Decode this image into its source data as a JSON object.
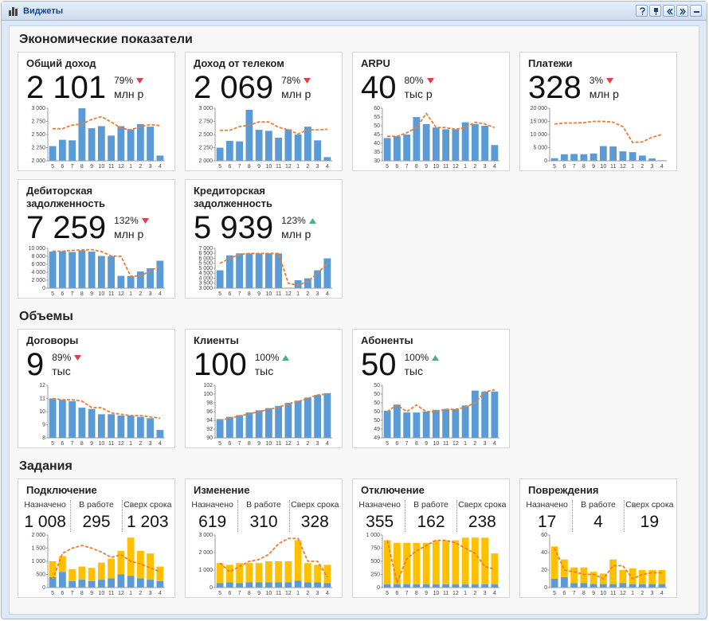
{
  "header": {
    "title": "Виджеты"
  },
  "colors": {
    "bar": "#5b9bd5",
    "upper": "#ffc000",
    "line": "#ed7d31",
    "up": "#4caf7a",
    "down": "#e0404a"
  },
  "months": [
    "5",
    "6",
    "7",
    "8",
    "9",
    "10",
    "11",
    "12",
    "1",
    "2",
    "3",
    "4"
  ],
  "sections": [
    {
      "title": "Экономические показатели",
      "widgets": [
        {
          "title": "Общий доход",
          "value": "2 101",
          "change": "79%",
          "trend": "down",
          "unit": "млн р",
          "chart": {
            "ylim": [
              2000,
              3000
            ],
            "yticks": [
              {
                "value": 2000,
                "label": "2 000"
              },
              {
                "value": 2250,
                "label": "2 250"
              },
              {
                "value": 2500,
                "label": "2 500"
              },
              {
                "value": 2750,
                "label": "2 750"
              },
              {
                "value": 3000,
                "label": "3 000"
              }
            ],
            "bars": [
              2280,
              2400,
              2390,
              3000,
              2620,
              2660,
              2480,
              2660,
              2600,
              2700,
              2650,
              2100
            ],
            "line": [
              2610,
              2610,
              2680,
              2700,
              2790,
              2840,
              2740,
              2620,
              2590,
              2650,
              2690,
              2670
            ]
          }
        },
        {
          "title": "Доход от телеком",
          "value": "2 069",
          "change": "78%",
          "trend": "down",
          "unit": "млн р",
          "chart": {
            "ylim": [
              2000,
              3000
            ],
            "yticks": [
              {
                "value": 2000,
                "label": "2 000"
              },
              {
                "value": 2250,
                "label": "2 250"
              },
              {
                "value": 2500,
                "label": "2 500"
              },
              {
                "value": 2750,
                "label": "2 750"
              },
              {
                "value": 3000,
                "label": "3 000"
              }
            ],
            "bars": [
              2250,
              2380,
              2370,
              2970,
              2590,
              2570,
              2440,
              2600,
              2500,
              2650,
              2390,
              2070
            ],
            "line": [
              2580,
              2580,
              2650,
              2680,
              2740,
              2740,
              2640,
              2590,
              2510,
              2590,
              2590,
              2600
            ]
          }
        },
        {
          "title": "ARPU",
          "value": "40",
          "change": "80%",
          "trend": "down",
          "unit": "тыс р",
          "chart": {
            "ylim": [
              30,
              60
            ],
            "yticks": [
              30,
              35,
              40,
              45,
              50,
              55,
              60
            ],
            "bars": [
              43,
              44,
              45,
              55,
              51,
              49,
              48,
              48,
              52,
              51,
              50,
              39
            ],
            "line": [
              44,
              44,
              46,
              49,
              57,
              49,
              49,
              48,
              49,
              52,
              51,
              49
            ]
          }
        },
        {
          "title": "Платежи",
          "value": "328",
          "change": "3%",
          "trend": "down",
          "unit": "млн р",
          "chart": {
            "ylim": [
              0,
              20000
            ],
            "yticks": [
              0,
              {
                "value": 5000,
                "label": "5 000"
              },
              {
                "value": 10000,
                "label": "10 000"
              },
              {
                "value": 15000,
                "label": "15 000"
              },
              {
                "value": 20000,
                "label": "20 000"
              }
            ],
            "bars": [
              1000,
              2500,
              2600,
              2500,
              2800,
              5600,
              5500,
              3600,
              3300,
              2000,
              900,
              200
            ],
            "line": [
              14000,
              14400,
              14400,
              14500,
              15000,
              15000,
              14700,
              13000,
              7000,
              7200,
              9000,
              10000
            ]
          }
        },
        {
          "title": "Дебиторская задолженность",
          "value": "7 259",
          "change": "132%",
          "trend": "down",
          "unit": "млн р",
          "chart": {
            "ylim": [
              0,
              10000
            ],
            "yticks": [
              0,
              {
                "value": 2000,
                "label": "2 000"
              },
              {
                "value": 4000,
                "label": "4 000"
              },
              {
                "value": 6000,
                "label": "6 000"
              },
              {
                "value": 8000,
                "label": "8 000"
              },
              {
                "value": 10000,
                "label": "10 000"
              }
            ],
            "bars": [
              9200,
              9300,
              9100,
              9500,
              9200,
              8100,
              8000,
              3100,
              3000,
              4200,
              5000,
              6900
            ],
            "line": [
              9300,
              9300,
              9500,
              9600,
              9700,
              9200,
              8100,
              8000,
              3000,
              3100,
              4300,
              5600
            ]
          }
        },
        {
          "title": "Кредиторская задолженность",
          "value": "5 939",
          "change": "123%",
          "trend": "up",
          "unit": "млн р",
          "chart": {
            "ylim": [
              3000,
              7000
            ],
            "yticks": [
              {
                "value": 3000,
                "label": "3 000"
              },
              {
                "value": 3500,
                "label": "3 500"
              },
              {
                "value": 4000,
                "label": "4 000"
              },
              {
                "value": 4500,
                "label": "4 500"
              },
              {
                "value": 5000,
                "label": "5 000"
              },
              {
                "value": 5500,
                "label": "5 500"
              },
              {
                "value": 6000,
                "label": "6 000"
              },
              {
                "value": 6500,
                "label": "6 500"
              },
              {
                "value": 7000,
                "label": "7 000"
              }
            ],
            "bars": [
              4800,
              6300,
              6500,
              6500,
              6500,
              6500,
              6500,
              3050,
              3800,
              4000,
              4800,
              6000
            ],
            "line": [
              5500,
              6000,
              6400,
              6500,
              6500,
              6500,
              6500,
              3500,
              3300,
              3700,
              4500,
              5500
            ]
          }
        }
      ]
    },
    {
      "title": "Объемы",
      "widgets": [
        {
          "title": "Договоры",
          "value": "9",
          "change": "89%",
          "trend": "down",
          "unit": "тыс",
          "chart": {
            "ylim": [
              8,
              12
            ],
            "yticks": [
              8,
              9,
              10,
              11,
              12
            ],
            "bars": [
              11,
              10.9,
              10.8,
              10.3,
              10.2,
              9.8,
              9.8,
              9.7,
              9.7,
              9.6,
              9.5,
              8.6
            ],
            "line": [
              11,
              10.9,
              10.9,
              10.8,
              10.3,
              10.3,
              9.9,
              9.8,
              9.7,
              9.7,
              9.6,
              9.5
            ]
          }
        },
        {
          "title": "Клиенты",
          "value": "100",
          "change": "100%",
          "trend": "up",
          "unit": "тыс",
          "chart": {
            "ylim": [
              90,
              102
            ],
            "yticks": [
              90,
              92,
              94,
              96,
              98,
              100,
              102
            ],
            "bars": [
              94.3,
              94.8,
              95.2,
              95.8,
              96.3,
              96.8,
              97.3,
              98,
              98.5,
              99.2,
              99.8,
              100.2
            ],
            "line": [
              94,
              94.5,
              95,
              95.5,
              96,
              96.5,
              97,
              97.8,
              98.3,
              99,
              99.8,
              100
            ]
          }
        },
        {
          "title": "Абоненты",
          "value": "50",
          "change": "100%",
          "trend": "up",
          "unit": "тыс",
          "chart": {
            "ylim": [
              49.2,
              50.4
            ],
            "yticks": [
              {
                "value": 49.2,
                "label": "49"
              },
              {
                "value": 49.4,
                "label": "49"
              },
              {
                "value": 49.6,
                "label": "50"
              },
              {
                "value": 49.8,
                "label": "50"
              },
              {
                "value": 50.0,
                "label": "50"
              },
              {
                "value": 50.2,
                "label": "50"
              },
              {
                "value": 50.4,
                "label": "50"
              }
            ],
            "bars": [
              49.82,
              49.96,
              49.78,
              49.78,
              49.8,
              49.84,
              49.86,
              49.86,
              49.94,
              50.28,
              50.26,
              50.26
            ],
            "line": [
              49.8,
              49.95,
              49.8,
              49.95,
              49.8,
              49.8,
              49.85,
              49.85,
              49.9,
              50.0,
              50.25,
              50.3
            ]
          }
        }
      ]
    },
    {
      "title": "Задания",
      "widgets": [
        {
          "title": "Подключение",
          "stats": [
            {
              "label": "Назначено",
              "value": "1 008"
            },
            {
              "label": "В работе",
              "value": "295"
            },
            {
              "label": "Сверх срока",
              "value": "1 203"
            }
          ],
          "chart": {
            "ylim": [
              0,
              2000
            ],
            "yticks": [
              0,
              {
                "value": 500,
                "label": "500"
              },
              {
                "value": 1000,
                "label": "1 000"
              },
              {
                "value": 1500,
                "label": "1 500"
              },
              {
                "value": 2000,
                "label": "2 000"
              }
            ],
            "bars": [
              400,
              600,
              250,
              300,
              250,
              300,
              350,
              500,
              450,
              350,
              300,
              250
            ],
            "upper": [
              600,
              600,
              450,
              500,
              500,
              650,
              750,
              900,
              1450,
              1050,
              1000,
              550
            ],
            "line": [
              300,
              1300,
              1500,
              1600,
              1500,
              1350,
              1150,
              1250,
              1000,
              900,
              750,
              600
            ]
          }
        },
        {
          "title": "Изменение",
          "stats": [
            {
              "label": "Назначено",
              "value": "619"
            },
            {
              "label": "В работе",
              "value": "310"
            },
            {
              "label": "Сверх срока",
              "value": "328"
            }
          ],
          "chart": {
            "ylim": [
              0,
              3000
            ],
            "yticks": [
              0,
              {
                "value": 1000,
                "label": "1 000"
              },
              {
                "value": 2000,
                "label": "2 000"
              },
              {
                "value": 3000,
                "label": "3 000"
              }
            ],
            "bars": [
              250,
              300,
              250,
              300,
              300,
              300,
              300,
              300,
              400,
              300,
              300,
              250
            ],
            "upper": [
              1150,
              1000,
              1150,
              1100,
              1100,
              1200,
              1200,
              1200,
              2300,
              1100,
              1000,
              1050
            ],
            "line": [
              1400,
              900,
              1200,
              1500,
              1600,
              1900,
              2500,
              2800,
              2800,
              1500,
              1500,
              600
            ]
          }
        },
        {
          "title": "Отключение",
          "stats": [
            {
              "label": "Назначено",
              "value": "355"
            },
            {
              "label": "В работе",
              "value": "162"
            },
            {
              "label": "Сверх срока",
              "value": "238"
            }
          ],
          "chart": {
            "ylim": [
              0,
              1000
            ],
            "yticks": [
              0,
              250,
              500,
              750,
              {
                "value": 1000,
                "label": "1 000"
              }
            ],
            "bars": [
              60,
              60,
              60,
              60,
              60,
              60,
              60,
              60,
              60,
              60,
              60,
              60
            ],
            "upper": [
              840,
              790,
              790,
              790,
              790,
              840,
              840,
              840,
              890,
              890,
              890,
              590
            ],
            "line": [
              900,
              100,
              550,
              700,
              800,
              900,
              900,
              850,
              750,
              650,
              400,
              350
            ]
          }
        },
        {
          "title": "Повреждения",
          "stats": [
            {
              "label": "Назначено",
              "value": "17"
            },
            {
              "label": "В работе",
              "value": "4"
            },
            {
              "label": "Сверх срока",
              "value": "19"
            }
          ],
          "chart": {
            "ylim": [
              0,
              60
            ],
            "yticks": [
              0,
              20,
              40,
              60
            ],
            "bars": [
              10,
              12,
              5,
              5,
              4,
              4,
              4,
              5,
              4,
              4,
              4,
              4
            ],
            "upper": [
              37,
              20,
              18,
              18,
              14,
              12,
              28,
              15,
              18,
              16,
              16,
              16
            ],
            "line": [
              45,
              20,
              18,
              15,
              15,
              10,
              25,
              25,
              10,
              15,
              17,
              17
            ]
          }
        }
      ]
    }
  ]
}
